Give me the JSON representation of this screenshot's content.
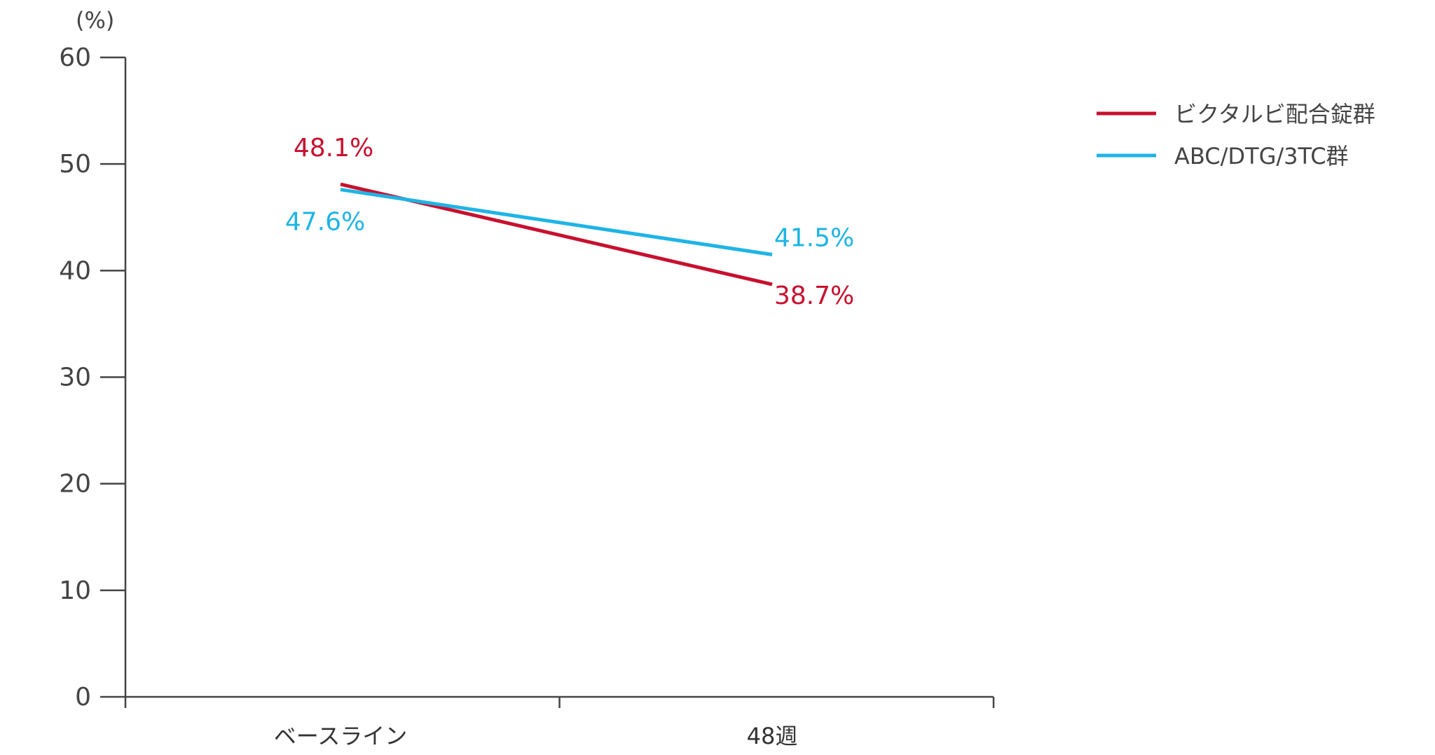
{
  "chart_data": {
    "type": "line",
    "categories": [
      "ベースライン",
      "48週"
    ],
    "ylim": [
      0,
      60
    ],
    "yticks": [
      0,
      10,
      20,
      30,
      40,
      50,
      60
    ],
    "yunit": "(%)",
    "grid": false,
    "legend_position": "top-right",
    "series": [
      {
        "name": "ビクタルビ配合錠群",
        "color": "#c8102e",
        "values": [
          48.1,
          38.7
        ],
        "labels": [
          "48.1%",
          "38.7%"
        ]
      },
      {
        "name": "ABC/DTG/3TC群",
        "color": "#1eb4e6",
        "values": [
          47.6,
          41.5
        ],
        "labels": [
          "47.6%",
          "41.5%"
        ]
      }
    ]
  }
}
